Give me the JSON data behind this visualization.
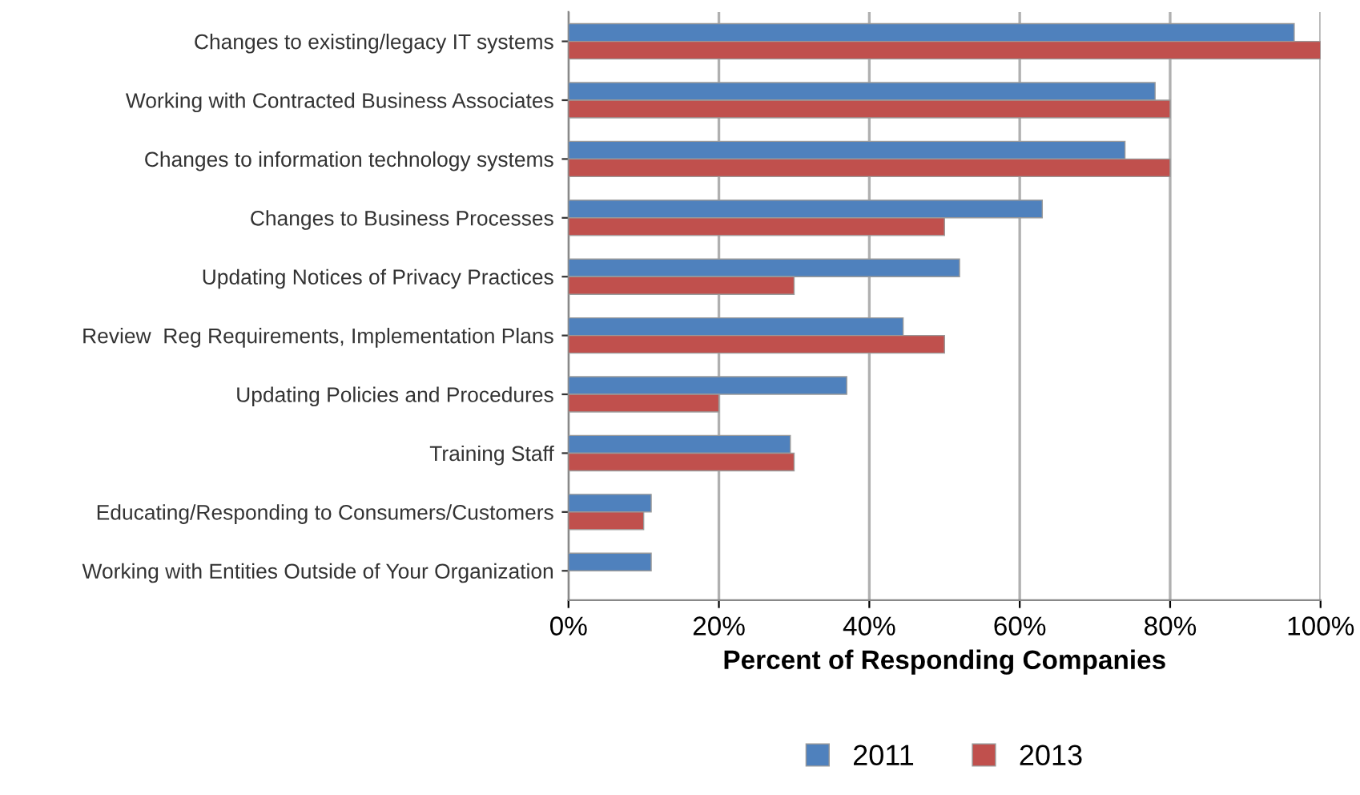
{
  "chart_data": {
    "type": "bar",
    "orientation": "horizontal",
    "xlabel": "Percent of Responding Companies",
    "categories": [
      "Changes to existing/legacy IT systems",
      "Working with Contracted Business Associates",
      "Changes to information technology systems",
      "Changes to Business Processes",
      "Updating Notices of Privacy Practices",
      "Review  Reg Requirements, Implementation Plans",
      "Updating Policies and Procedures",
      "Training Staff",
      "Educating/Responding to Consumers/Customers",
      "Working with Entities Outside of Your Organization"
    ],
    "series": [
      {
        "name": "2011",
        "color": "#4f81bd",
        "values": [
          96.5,
          78,
          74,
          63,
          52,
          44.5,
          37,
          29.5,
          11,
          11
        ]
      },
      {
        "name": "2013",
        "color": "#c0504d",
        "values": [
          100,
          80,
          80,
          50,
          30,
          50,
          20,
          30,
          10,
          null
        ]
      }
    ],
    "xlim": [
      0,
      100
    ],
    "xticks": [
      {
        "value": 0,
        "label": "0%"
      },
      {
        "value": 20,
        "label": "20%"
      },
      {
        "value": 40,
        "label": "40%"
      },
      {
        "value": 60,
        "label": "60%"
      },
      {
        "value": 80,
        "label": "80%"
      },
      {
        "value": 100,
        "label": "100%"
      }
    ],
    "grid": "x",
    "legend": "bottom"
  }
}
